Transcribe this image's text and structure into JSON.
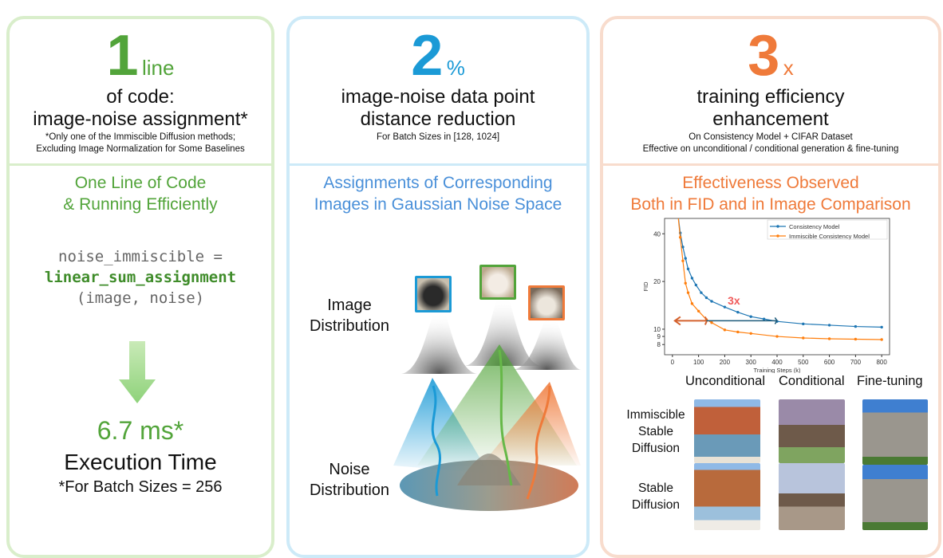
{
  "colors": {
    "green": "#52a43a",
    "blue": "#1b9ad6",
    "orange": "#ef7a3a"
  },
  "panel1": {
    "number": "1",
    "unit": "line",
    "title": [
      "of code:",
      "image-noise assignment*"
    ],
    "notes": [
      "*Only one of the Immiscible Diffusion methods;",
      "Excluding Image Normalization for Some Baselines"
    ],
    "section_title": [
      "One Line of Code",
      "& Running Efficiently"
    ],
    "code": [
      "noise_immiscible =",
      "linear_sum_assignment",
      "(image, noise)"
    ],
    "metric": "6.7 ms*",
    "metric_label": "Execution Time",
    "metric_note": "*For Batch Sizes = 256",
    "arrow_icon": "arrow-down-icon"
  },
  "panel2": {
    "number": "2",
    "unit": "%",
    "title": [
      "image-noise data point",
      "distance reduction"
    ],
    "notes": [
      "For Batch Sizes in [128, 1024]"
    ],
    "section_title": [
      "Assignments of Corresponding",
      "Images in Gaussian Noise Space"
    ],
    "image_label": [
      "Image",
      "Distribution"
    ],
    "noise_label": [
      "Noise",
      "Distribution"
    ]
  },
  "panel3": {
    "number": "3",
    "unit": "x",
    "title": [
      "training efficiency",
      "enhancement"
    ],
    "notes": [
      "On Consistency Model + CIFAR Dataset",
      "Effective on unconditional / conditional generation & fine-tuning"
    ],
    "section_title": [
      "Effectiveness Observed",
      "Both in FID and in Image Comparison"
    ],
    "columns": [
      "Unconditional",
      "Conditional",
      "Fine-tuning"
    ],
    "rows": [
      [
        "Immiscible",
        "Stable",
        "Diffusion"
      ],
      [
        "Stable",
        "Diffusion"
      ]
    ]
  },
  "chart_data": {
    "type": "line",
    "xlabel": "Training Steps (k)",
    "ylabel": "FID",
    "yscale": "log",
    "xlim": [
      -30,
      830
    ],
    "ylim": [
      6.9,
      50
    ],
    "xticks": [
      0,
      100,
      200,
      300,
      400,
      500,
      600,
      700,
      800
    ],
    "yticks": [
      8,
      9,
      10,
      20,
      40
    ],
    "legend_position": "top-right",
    "annotation": "3x",
    "series": [
      {
        "name": "Consistency Model",
        "color": "#1f77b4",
        "x": [
          20,
          30,
          40,
          50,
          60,
          75,
          90,
          110,
          130,
          150,
          200,
          250,
          300,
          350,
          400,
          500,
          600,
          700,
          800
        ],
        "y": [
          55,
          40.5,
          33,
          28,
          24,
          21,
          19,
          17,
          15.8,
          15,
          13.8,
          12.8,
          12,
          11.6,
          11.2,
          10.8,
          10.6,
          10.4,
          10.3
        ]
      },
      {
        "name": "Immiscible Consistency Model",
        "color": "#ff7f0e",
        "x": [
          20,
          30,
          40,
          50,
          60,
          75,
          100,
          130,
          150,
          200,
          250,
          300,
          400,
          500,
          600,
          700,
          800
        ],
        "y": [
          55,
          38,
          27,
          19.5,
          17,
          14.5,
          13,
          11.5,
          11,
          9.9,
          9.6,
          9.4,
          9.0,
          8.8,
          8.7,
          8.65,
          8.6
        ]
      }
    ]
  }
}
